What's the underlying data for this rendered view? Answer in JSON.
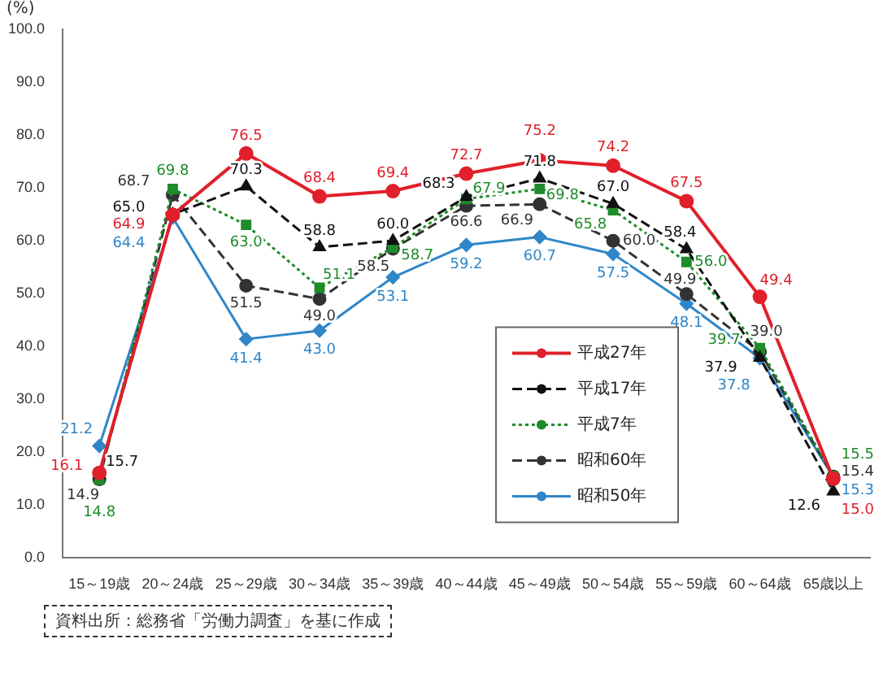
{
  "chart_data": {
    "type": "line",
    "ylabel": "(%)",
    "categories": [
      "15～19歳",
      "20～24歳",
      "25～29歳",
      "30～34歳",
      "35～39歳",
      "40～44歳",
      "45～49歳",
      "50～54歳",
      "55～59歳",
      "60～64歳",
      "65歳以上"
    ],
    "series": [
      {
        "name": "平成27年",
        "color": "#e0202a",
        "marker": "circle",
        "line_style": "solid",
        "values": [
          16.1,
          64.9,
          76.5,
          68.4,
          69.4,
          72.7,
          75.2,
          74.2,
          67.5,
          49.4,
          15.0
        ],
        "value_labels": [
          "16.1",
          "64.9",
          "76.5",
          "68.4",
          "69.4",
          "72.7",
          "75.2",
          "74.2",
          "67.5",
          "49.4",
          "15.0"
        ]
      },
      {
        "name": "平成17年",
        "color": "#111111",
        "marker": "triangle",
        "line_style": "dashed",
        "values": [
          15.7,
          65.0,
          70.3,
          58.8,
          60.0,
          68.3,
          71.8,
          67.0,
          58.4,
          37.9,
          12.6
        ],
        "value_labels": [
          "15.7",
          "65.0",
          "70.3",
          "58.8",
          "60.0",
          "68.3",
          "71.8",
          "67.0",
          "58.4",
          "37.9",
          "12.6"
        ]
      },
      {
        "name": "平成7年",
        "color": "#1e8c2a",
        "marker": "square",
        "line_style": "dotted",
        "values": [
          14.8,
          69.8,
          63.0,
          51.1,
          58.7,
          67.9,
          69.8,
          65.8,
          56.0,
          39.7,
          15.5
        ],
        "value_labels": [
          "14.8",
          "69.8",
          "63.0",
          "51.1",
          "58.7",
          "67.9",
          "69.8",
          "65.8",
          "56.0",
          "39.7",
          "15.5"
        ]
      },
      {
        "name": "昭和60年",
        "color": "#333333",
        "marker": "circle",
        "line_style": "dashed",
        "values": [
          14.9,
          68.7,
          51.5,
          49.0,
          58.5,
          66.6,
          66.9,
          60.0,
          49.9,
          39.0,
          15.4
        ],
        "value_labels": [
          "14.9",
          "68.7",
          "51.5",
          "49.0",
          "58.5",
          "66.6",
          "66.9",
          "60.0",
          "49.9",
          "39.0",
          "15.4"
        ]
      },
      {
        "name": "昭和50年",
        "color": "#2f86c8",
        "marker": "diamond",
        "line_style": "solid",
        "values": [
          21.2,
          64.4,
          41.4,
          43.0,
          53.1,
          59.2,
          60.7,
          57.5,
          48.1,
          37.8,
          15.3
        ],
        "value_labels": [
          "21.2",
          "64.4",
          "41.4",
          "43.0",
          "53.1",
          "59.2",
          "60.7",
          "57.5",
          "48.1",
          "37.8",
          "15.3"
        ]
      }
    ],
    "ylim": [
      0,
      100
    ],
    "yticks": [
      {
        "value": 0,
        "label": "0.0"
      },
      {
        "value": 10,
        "label": "10.0"
      },
      {
        "value": 20,
        "label": "20.0"
      },
      {
        "value": 30,
        "label": "30.0"
      },
      {
        "value": 40,
        "label": "40.0"
      },
      {
        "value": 50,
        "label": "50.0"
      },
      {
        "value": 60,
        "label": "60.0"
      },
      {
        "value": 70,
        "label": "70.0"
      },
      {
        "value": 80,
        "label": "80.0"
      },
      {
        "value": 90,
        "label": "90.0"
      },
      {
        "value": 100,
        "label": "100.0"
      }
    ],
    "grid": false,
    "legend": "bottom right",
    "annotations": [
      "資料出所：総務省「労働力調査」を基に作成"
    ]
  }
}
